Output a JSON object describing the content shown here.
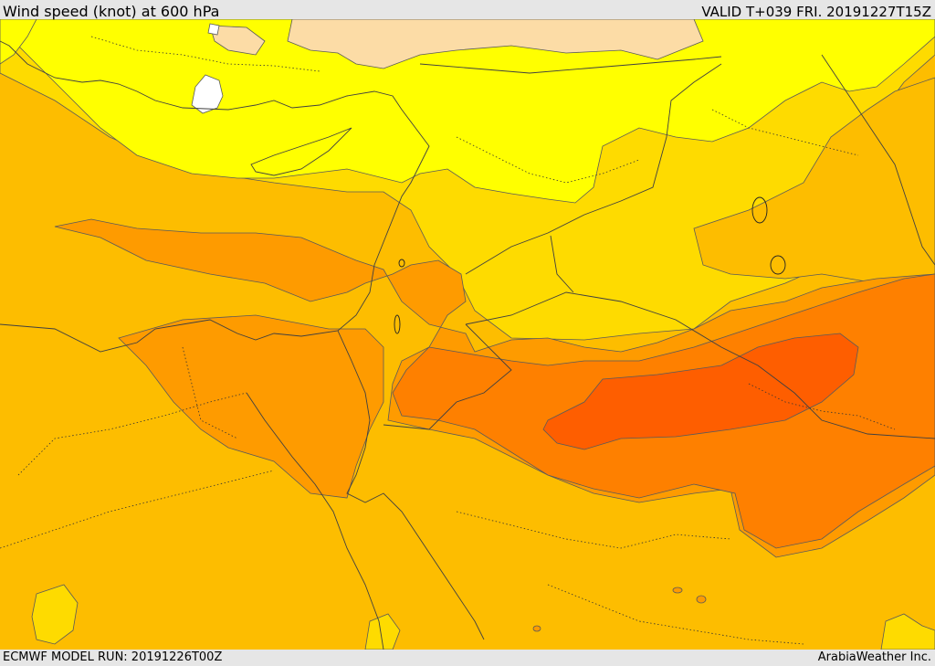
{
  "header": {
    "title": "Wind speed (knot) at 600 hPa",
    "valid": "VALID T+039 FRI. 20191227T15Z"
  },
  "footer": {
    "model_run": "ECMWF MODEL RUN: 20191226T00Z",
    "credit": "ArabiaWeather Inc."
  },
  "map": {
    "variable": "wind speed",
    "level": "600 hPa",
    "shading_colors": {
      "white": "#ffffff",
      "tan": "#fcdca6",
      "yellow": "#ffff00",
      "gold": "#fedb00",
      "amber": "#fdbd00",
      "orange_light": "#fe9b00",
      "orange": "#fe8000",
      "orange_deep": "#fe5e00"
    }
  }
}
